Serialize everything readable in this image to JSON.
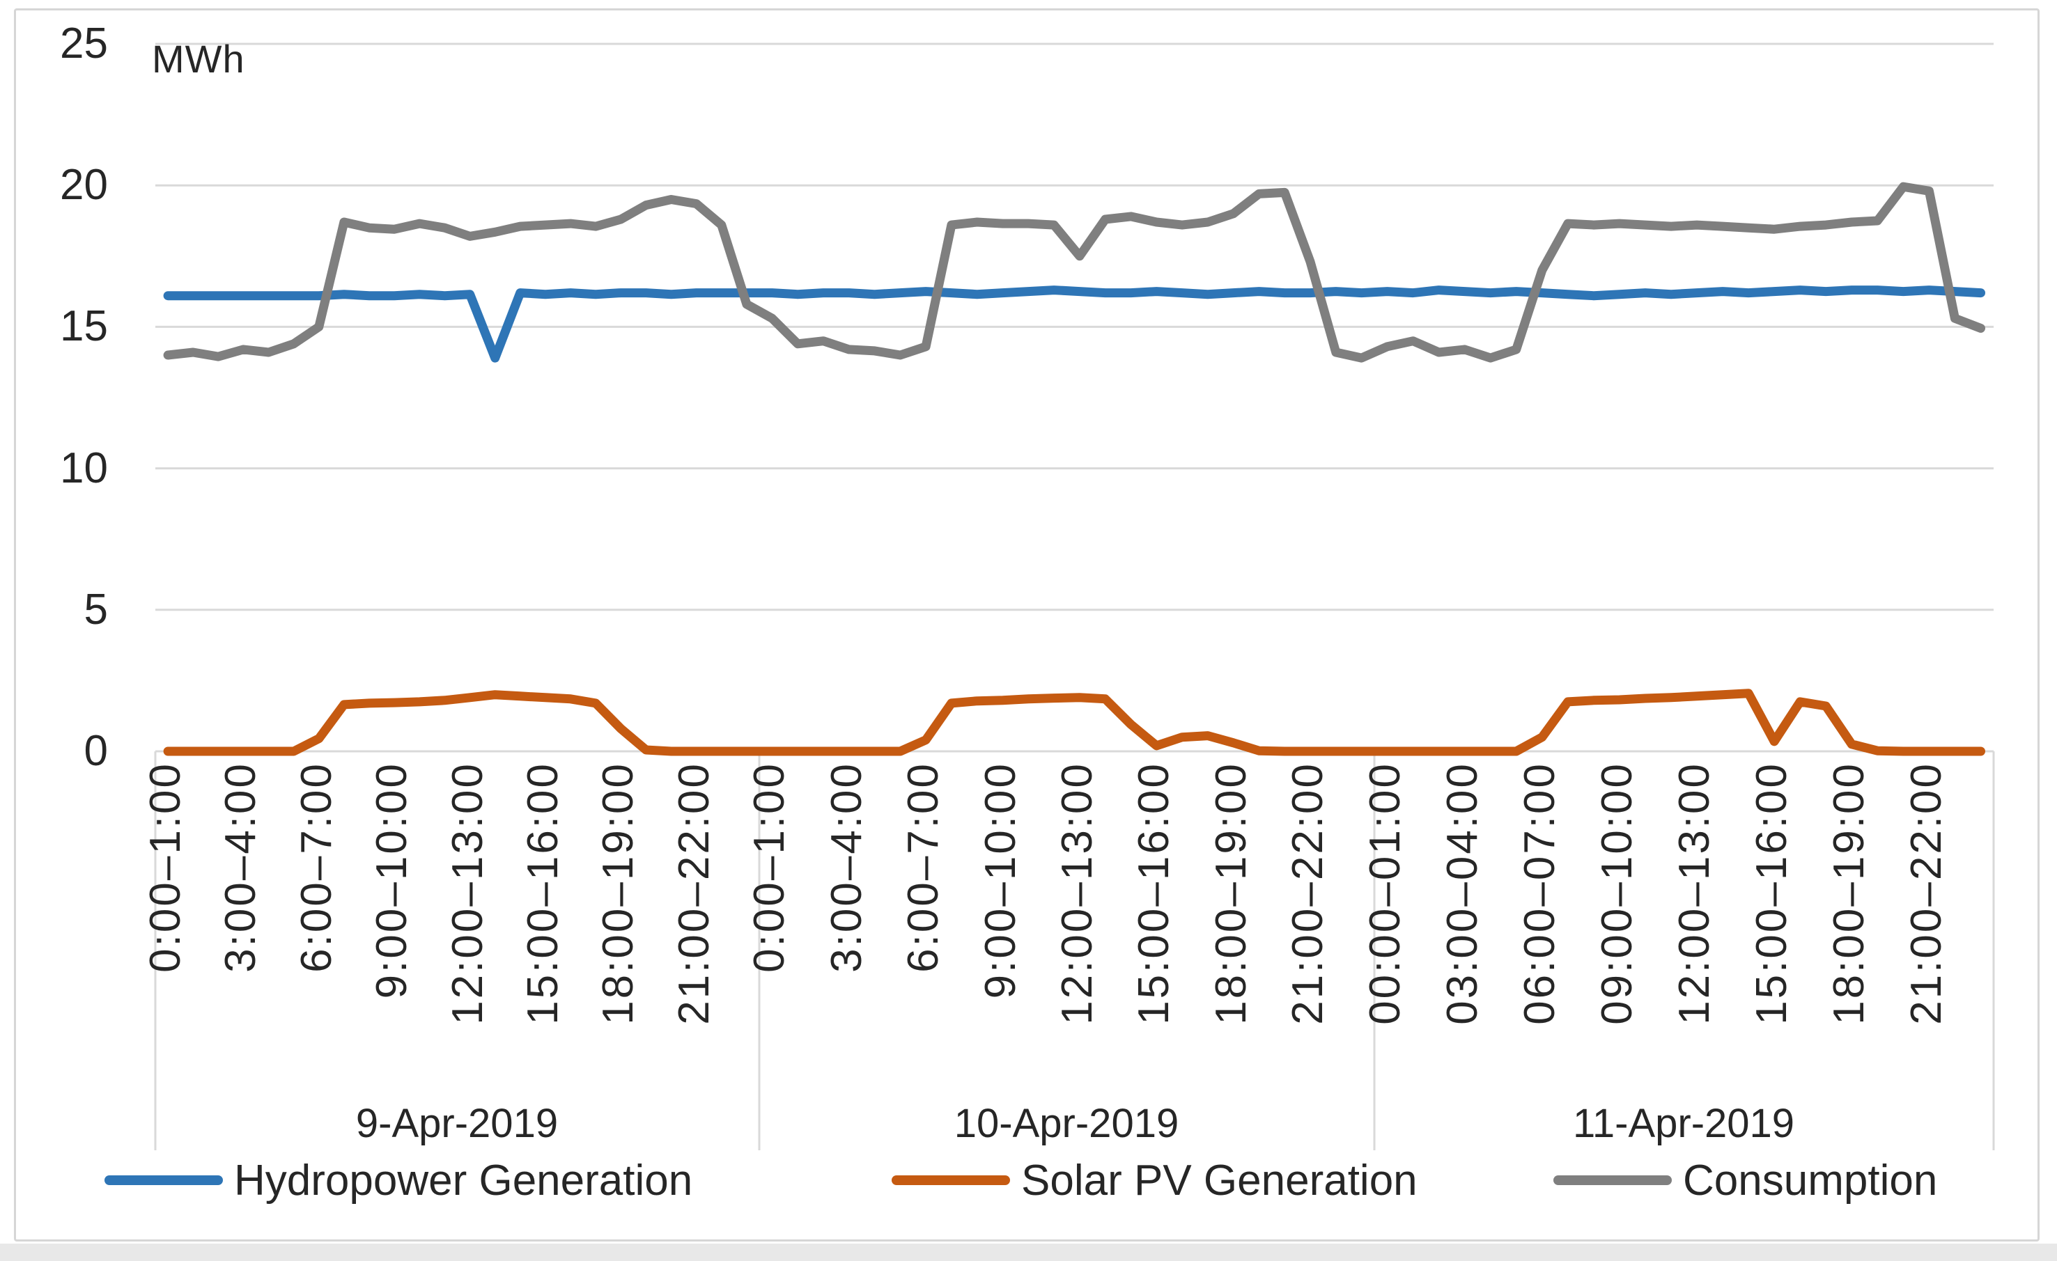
{
  "window": {
    "background": "#FFFFFF",
    "border_color": "#D6D6D6",
    "bottom_strip_color": "#E8E8E8"
  },
  "colors": {
    "gridline": "#D9D9D9",
    "separator": "#D9D9D9",
    "text": "#262626"
  },
  "chart_data": {
    "type": "line",
    "title": "",
    "unit_label": "MWh",
    "ylabel": "MWh",
    "xlabel": "",
    "ylim": [
      0,
      25
    ],
    "y_ticks": [
      "25",
      "20",
      "15",
      "10",
      "5",
      "0"
    ],
    "y_tick_values": [
      25,
      20,
      15,
      10,
      5,
      0
    ],
    "grid": true,
    "legend_position": "bottom",
    "x_axis": {
      "hours_per_day": 24,
      "tick_every_hours": 3,
      "days": [
        {
          "date": "9-Apr-2019",
          "tick_labels": [
            "0:00–1:00",
            "3:00–4:00",
            "6:00–7:00",
            "9:00–10:00",
            "12:00–13:00",
            "15:00–16:00",
            "18:00–19:00",
            "21:00–22:00"
          ]
        },
        {
          "date": "10-Apr-2019",
          "tick_labels": [
            "0:00–1:00",
            "3:00–4:00",
            "6:00–7:00",
            "9:00–10:00",
            "12:00–13:00",
            "15:00–16:00",
            "18:00–19:00",
            "21:00–22:00"
          ]
        },
        {
          "date": "11-Apr-2019",
          "tick_labels": [
            "00:00–01:00",
            "03:00–04:00",
            "06:00–07:00",
            "09:00–10:00",
            "12:00–13:00",
            "15:00–16:00",
            "18:00–19:00",
            "21:00–22:00"
          ]
        }
      ]
    },
    "series": [
      {
        "name": "Hydropower Generation",
        "color": "#2E75B6",
        "values": [
          16.1,
          16.1,
          16.1,
          16.1,
          16.1,
          16.1,
          16.1,
          16.15,
          16.1,
          16.1,
          16.15,
          16.1,
          16.15,
          13.9,
          16.2,
          16.15,
          16.2,
          16.15,
          16.2,
          16.2,
          16.15,
          16.2,
          16.2,
          16.2,
          16.2,
          16.15,
          16.2,
          16.2,
          16.15,
          16.2,
          16.25,
          16.2,
          16.15,
          16.2,
          16.25,
          16.3,
          16.25,
          16.2,
          16.2,
          16.25,
          16.2,
          16.15,
          16.2,
          16.25,
          16.2,
          16.2,
          16.25,
          16.2,
          16.25,
          16.2,
          16.3,
          16.25,
          16.2,
          16.25,
          16.2,
          16.15,
          16.1,
          16.15,
          16.2,
          16.15,
          16.2,
          16.25,
          16.2,
          16.25,
          16.3,
          16.25,
          16.3,
          16.3,
          16.25,
          16.3,
          16.25,
          16.2
        ]
      },
      {
        "name": "Solar PV Generation",
        "color": "#C55A11",
        "values": [
          0,
          0,
          0,
          0,
          0,
          0,
          0.45,
          1.65,
          1.7,
          1.72,
          1.75,
          1.8,
          1.9,
          2.0,
          1.95,
          1.9,
          1.85,
          1.7,
          0.8,
          0.05,
          0,
          0,
          0,
          0,
          0,
          0,
          0,
          0,
          0,
          0,
          0.4,
          1.7,
          1.78,
          1.8,
          1.85,
          1.88,
          1.9,
          1.85,
          0.95,
          0.2,
          0.5,
          0.55,
          0.3,
          0.02,
          0,
          0,
          0,
          0,
          0,
          0,
          0,
          0,
          0,
          0,
          0.5,
          1.75,
          1.8,
          1.82,
          1.87,
          1.9,
          1.95,
          2.0,
          2.05,
          0.35,
          1.75,
          1.6,
          0.25,
          0.02,
          0,
          0,
          0,
          0
        ]
      },
      {
        "name": "Consumption",
        "color": "#7F7F7F",
        "values": [
          14.0,
          14.1,
          13.95,
          14.2,
          14.1,
          14.4,
          15.0,
          18.7,
          18.5,
          18.45,
          18.65,
          18.5,
          18.2,
          18.35,
          18.55,
          18.6,
          18.65,
          18.55,
          18.8,
          19.3,
          19.5,
          19.35,
          18.6,
          15.8,
          15.3,
          14.4,
          14.5,
          14.2,
          14.15,
          14.0,
          14.3,
          18.6,
          18.7,
          18.65,
          18.65,
          18.6,
          17.5,
          18.8,
          18.9,
          18.7,
          18.6,
          18.7,
          19.0,
          19.7,
          19.75,
          17.3,
          14.1,
          13.9,
          14.3,
          14.5,
          14.1,
          14.2,
          13.9,
          14.2,
          17.0,
          18.65,
          18.6,
          18.65,
          18.6,
          18.55,
          18.6,
          18.55,
          18.5,
          18.45,
          18.55,
          18.6,
          18.7,
          18.75,
          19.95,
          19.8,
          15.3,
          14.95
        ]
      }
    ]
  }
}
